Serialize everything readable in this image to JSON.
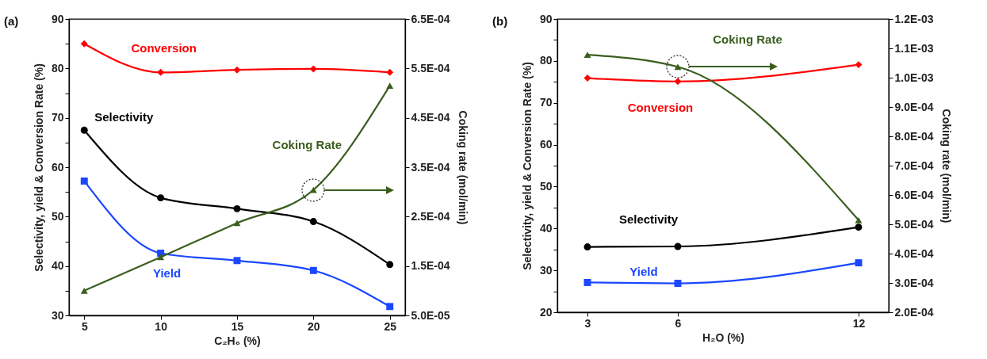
{
  "chart_data": [
    {
      "type": "line",
      "annotations": [
        "(a)"
      ],
      "xlabel": "C₂H₆ (%)",
      "ylabel": "Selectivity, yield & Conversion Rate (%)",
      "y2label": "Coking rate (mol/min)",
      "x": [
        5,
        10,
        15,
        20,
        25
      ],
      "xlim": [
        4,
        26
      ],
      "xticks": [
        5,
        10,
        15,
        20,
        25
      ],
      "ylim": [
        30,
        90
      ],
      "yticks": [
        30,
        {
          "value": 35,
          "label": null
        },
        40,
        {
          "value": 45,
          "label": null
        },
        50,
        {
          "value": 55,
          "label": null
        },
        60,
        {
          "value": 65,
          "label": null
        },
        70,
        {
          "value": 75,
          "label": null
        },
        80,
        {
          "value": 85,
          "label": null
        },
        90
      ],
      "y2lim": [
        5e-05,
        0.00065
      ],
      "y2ticks": [
        {
          "value": 5e-05,
          "label": "5.0E-05"
        },
        {
          "value": 0.00015,
          "label": "1.5E-04"
        },
        {
          "value": 0.00025,
          "label": "2.5E-04"
        },
        {
          "value": 0.00035,
          "label": "3.5E-04"
        },
        {
          "value": 0.00045,
          "label": "4.5E-04"
        },
        {
          "value": 0.00055,
          "label": "5.5E-04"
        },
        {
          "value": 0.00065,
          "label": "6.5E-04"
        }
      ],
      "grid": false,
      "legend": false,
      "series": [
        {
          "name": "Conversion",
          "color": "#ff0000",
          "marker": "diamond",
          "values": [
            85.0,
            79.2,
            79.7,
            79.9,
            79.2
          ]
        },
        {
          "name": "Selectivity",
          "color": "#000000",
          "marker": "circle",
          "values": [
            67.5,
            53.8,
            51.6,
            49.0,
            40.3
          ]
        },
        {
          "name": "Yield",
          "color": "#1a47ff",
          "marker": "square",
          "values": [
            57.2,
            42.6,
            41.1,
            39.1,
            31.8
          ]
        },
        {
          "name": "Coking Rate",
          "color": "#3b5e1f",
          "marker": "triangle",
          "axis": "y2",
          "values": [
            0.0001,
            0.000168,
            0.000237,
            0.000304,
            0.000515
          ]
        }
      ]
    },
    {
      "type": "line",
      "annotations": [
        "(b)"
      ],
      "xlabel": "H₂O (%)",
      "ylabel": "Selectivity, yield & Conversion Rate (%)",
      "y2label": "Coking rate (mol/min)",
      "x": [
        3,
        6,
        12
      ],
      "xlim": [
        2,
        13
      ],
      "xticks": [
        3,
        6,
        12
      ],
      "ylim": [
        20,
        90
      ],
      "yticks": [
        20,
        {
          "value": 25,
          "label": null
        },
        30,
        {
          "value": 35,
          "label": null
        },
        40,
        {
          "value": 45,
          "label": null
        },
        50,
        {
          "value": 55,
          "label": null
        },
        60,
        {
          "value": 65,
          "label": null
        },
        70,
        {
          "value": 75,
          "label": null
        },
        80,
        {
          "value": 85,
          "label": null
        },
        90
      ],
      "y2lim": [
        0.0002,
        0.0012
      ],
      "y2ticks": [
        {
          "value": 0.0002,
          "label": "2.0E-04"
        },
        {
          "value": 0.0003,
          "label": "3.0E-04"
        },
        {
          "value": 0.0004,
          "label": "4.0E-04"
        },
        {
          "value": 0.0005,
          "label": "5.0E-04"
        },
        {
          "value": 0.0006,
          "label": "6.0E-04"
        },
        {
          "value": 0.0007,
          "label": "7.0E-04"
        },
        {
          "value": 0.0008,
          "label": "8.0E-04"
        },
        {
          "value": 0.0009,
          "label": "9.0E-04"
        },
        {
          "value": 0.001,
          "label": "1.0E-03"
        },
        {
          "value": 0.0011,
          "label": "1.1E-03"
        },
        {
          "value": 0.0012,
          "label": "1.2E-03"
        }
      ],
      "grid": false,
      "legend": false,
      "series": [
        {
          "name": "Conversion",
          "color": "#ff0000",
          "marker": "diamond",
          "values": [
            75.9,
            75.1,
            79.1
          ]
        },
        {
          "name": "Selectivity",
          "color": "#000000",
          "marker": "circle",
          "values": [
            35.6,
            35.7,
            40.3
          ]
        },
        {
          "name": "Yield",
          "color": "#1a47ff",
          "marker": "square",
          "values": [
            27.1,
            26.9,
            31.8
          ]
        },
        {
          "name": "Coking Rate",
          "color": "#3b5e1f",
          "marker": "triangle",
          "axis": "y2",
          "values": [
            0.001078,
            0.001037,
            0.000514
          ]
        }
      ]
    }
  ]
}
